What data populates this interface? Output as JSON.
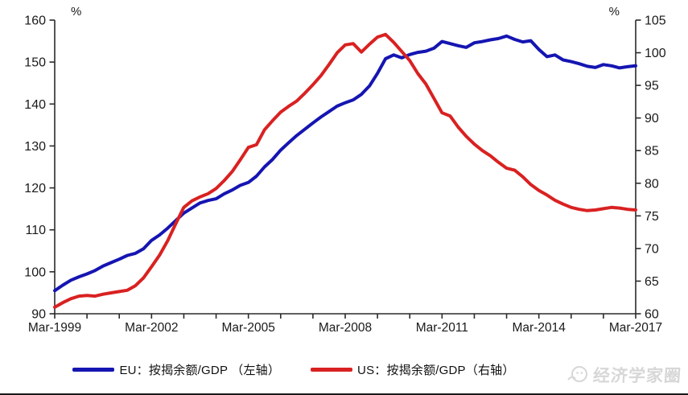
{
  "legend": {
    "eu_label": "EU：按揭余额/GDP （左轴）",
    "us_label": "US：按揭余额/GDP（右轴）"
  },
  "watermark": {
    "text": "经济学家圈",
    "icon": "face-logo"
  },
  "colors": {
    "eu": "#1515b2",
    "us": "#d92121",
    "axis": "#2a2a2a",
    "text": "#1a1a1a",
    "watermark": "#d7d7d7"
  },
  "chart_data": {
    "type": "line",
    "title": "",
    "grid": false,
    "legend_position": "bottom-center",
    "x_axis": {
      "range": [
        1999,
        2017
      ],
      "minor_tick_interval_years": 1,
      "major_tick_years": [
        1999,
        2002,
        2005,
        2008,
        2011,
        2014,
        2017
      ],
      "tick_labels": [
        "Mar-1999",
        "Mar-2002",
        "Mar-2005",
        "Mar-2008",
        "Mar-2011",
        "Mar-2014",
        "Mar-2017"
      ]
    },
    "left_axis": {
      "unit": "%",
      "range": [
        90,
        160
      ],
      "ticks": [
        90,
        100,
        110,
        120,
        130,
        140,
        150,
        160
      ]
    },
    "right_axis": {
      "unit": "%",
      "range": [
        60,
        105
      ],
      "ticks": [
        60,
        65,
        70,
        75,
        80,
        85,
        90,
        95,
        100,
        105
      ]
    },
    "series": [
      {
        "name": "EU：按揭余额/GDP （左轴）",
        "axis": "left",
        "color": "#1515b2",
        "points": [
          [
            1999.0,
            95.5
          ],
          [
            1999.25,
            96.8
          ],
          [
            1999.5,
            98.0
          ],
          [
            1999.75,
            98.8
          ],
          [
            2000.0,
            99.5
          ],
          [
            2000.25,
            100.3
          ],
          [
            2000.5,
            101.4
          ],
          [
            2000.75,
            102.2
          ],
          [
            2001.0,
            103.0
          ],
          [
            2001.25,
            103.9
          ],
          [
            2001.5,
            104.4
          ],
          [
            2001.75,
            105.5
          ],
          [
            2002.0,
            107.5
          ],
          [
            2002.25,
            108.8
          ],
          [
            2002.5,
            110.4
          ],
          [
            2002.75,
            112.2
          ],
          [
            2003.0,
            114.0
          ],
          [
            2003.25,
            115.2
          ],
          [
            2003.5,
            116.4
          ],
          [
            2003.75,
            117.0
          ],
          [
            2004.0,
            117.4
          ],
          [
            2004.25,
            118.6
          ],
          [
            2004.5,
            119.5
          ],
          [
            2004.75,
            120.6
          ],
          [
            2005.0,
            121.3
          ],
          [
            2005.25,
            122.8
          ],
          [
            2005.5,
            125.0
          ],
          [
            2005.75,
            126.8
          ],
          [
            2006.0,
            129.0
          ],
          [
            2006.25,
            130.8
          ],
          [
            2006.5,
            132.5
          ],
          [
            2006.75,
            134.0
          ],
          [
            2007.0,
            135.5
          ],
          [
            2007.25,
            136.9
          ],
          [
            2007.5,
            138.2
          ],
          [
            2007.75,
            139.5
          ],
          [
            2008.0,
            140.3
          ],
          [
            2008.25,
            141.0
          ],
          [
            2008.5,
            142.3
          ],
          [
            2008.75,
            144.3
          ],
          [
            2009.0,
            147.3
          ],
          [
            2009.25,
            150.8
          ],
          [
            2009.5,
            151.7
          ],
          [
            2009.75,
            151.0
          ],
          [
            2010.0,
            151.8
          ],
          [
            2010.25,
            152.3
          ],
          [
            2010.5,
            152.6
          ],
          [
            2010.75,
            153.3
          ],
          [
            2011.0,
            154.9
          ],
          [
            2011.25,
            154.4
          ],
          [
            2011.5,
            153.9
          ],
          [
            2011.75,
            153.5
          ],
          [
            2012.0,
            154.6
          ],
          [
            2012.25,
            154.9
          ],
          [
            2012.5,
            155.3
          ],
          [
            2012.75,
            155.6
          ],
          [
            2013.0,
            156.2
          ],
          [
            2013.25,
            155.4
          ],
          [
            2013.5,
            154.8
          ],
          [
            2013.75,
            155.1
          ],
          [
            2014.0,
            153.0
          ],
          [
            2014.25,
            151.3
          ],
          [
            2014.5,
            151.7
          ],
          [
            2014.75,
            150.5
          ],
          [
            2015.0,
            150.1
          ],
          [
            2015.25,
            149.6
          ],
          [
            2015.5,
            149.0
          ],
          [
            2015.75,
            148.7
          ],
          [
            2016.0,
            149.4
          ],
          [
            2016.25,
            149.1
          ],
          [
            2016.5,
            148.6
          ],
          [
            2016.75,
            148.9
          ],
          [
            2017.0,
            149.1
          ]
        ]
      },
      {
        "name": "US：按揭余额/GDP（右轴）",
        "axis": "right",
        "color": "#d92121",
        "points": [
          [
            1999.0,
            61.0
          ],
          [
            1999.25,
            61.7
          ],
          [
            1999.5,
            62.3
          ],
          [
            1999.75,
            62.7
          ],
          [
            2000.0,
            62.8
          ],
          [
            2000.25,
            62.7
          ],
          [
            2000.5,
            63.0
          ],
          [
            2000.75,
            63.2
          ],
          [
            2001.0,
            63.4
          ],
          [
            2001.25,
            63.6
          ],
          [
            2001.5,
            64.3
          ],
          [
            2001.75,
            65.5
          ],
          [
            2002.0,
            67.2
          ],
          [
            2002.25,
            69.0
          ],
          [
            2002.5,
            71.2
          ],
          [
            2002.75,
            73.8
          ],
          [
            2003.0,
            76.3
          ],
          [
            2003.25,
            77.3
          ],
          [
            2003.5,
            77.9
          ],
          [
            2003.75,
            78.4
          ],
          [
            2004.0,
            79.2
          ],
          [
            2004.25,
            80.4
          ],
          [
            2004.5,
            81.8
          ],
          [
            2004.75,
            83.6
          ],
          [
            2005.0,
            85.5
          ],
          [
            2005.25,
            85.9
          ],
          [
            2005.5,
            88.2
          ],
          [
            2005.75,
            89.6
          ],
          [
            2006.0,
            90.9
          ],
          [
            2006.25,
            91.8
          ],
          [
            2006.5,
            92.6
          ],
          [
            2006.75,
            93.8
          ],
          [
            2007.0,
            95.1
          ],
          [
            2007.25,
            96.5
          ],
          [
            2007.5,
            98.2
          ],
          [
            2007.75,
            100.0
          ],
          [
            2008.0,
            101.2
          ],
          [
            2008.25,
            101.4
          ],
          [
            2008.5,
            100.1
          ],
          [
            2008.75,
            101.3
          ],
          [
            2009.0,
            102.4
          ],
          [
            2009.25,
            102.8
          ],
          [
            2009.5,
            101.6
          ],
          [
            2009.75,
            100.2
          ],
          [
            2010.0,
            98.8
          ],
          [
            2010.25,
            96.8
          ],
          [
            2010.5,
            95.2
          ],
          [
            2010.75,
            93.0
          ],
          [
            2011.0,
            90.8
          ],
          [
            2011.25,
            90.3
          ],
          [
            2011.5,
            88.6
          ],
          [
            2011.75,
            87.2
          ],
          [
            2012.0,
            86.0
          ],
          [
            2012.25,
            85.0
          ],
          [
            2012.5,
            84.2
          ],
          [
            2012.75,
            83.2
          ],
          [
            2013.0,
            82.3
          ],
          [
            2013.25,
            82.0
          ],
          [
            2013.5,
            81.0
          ],
          [
            2013.75,
            79.8
          ],
          [
            2014.0,
            78.9
          ],
          [
            2014.25,
            78.2
          ],
          [
            2014.5,
            77.4
          ],
          [
            2014.75,
            76.8
          ],
          [
            2015.0,
            76.3
          ],
          [
            2015.25,
            76.0
          ],
          [
            2015.5,
            75.8
          ],
          [
            2015.75,
            75.9
          ],
          [
            2016.0,
            76.1
          ],
          [
            2016.25,
            76.3
          ],
          [
            2016.5,
            76.2
          ],
          [
            2016.75,
            76.0
          ],
          [
            2017.0,
            75.9
          ]
        ]
      }
    ]
  }
}
